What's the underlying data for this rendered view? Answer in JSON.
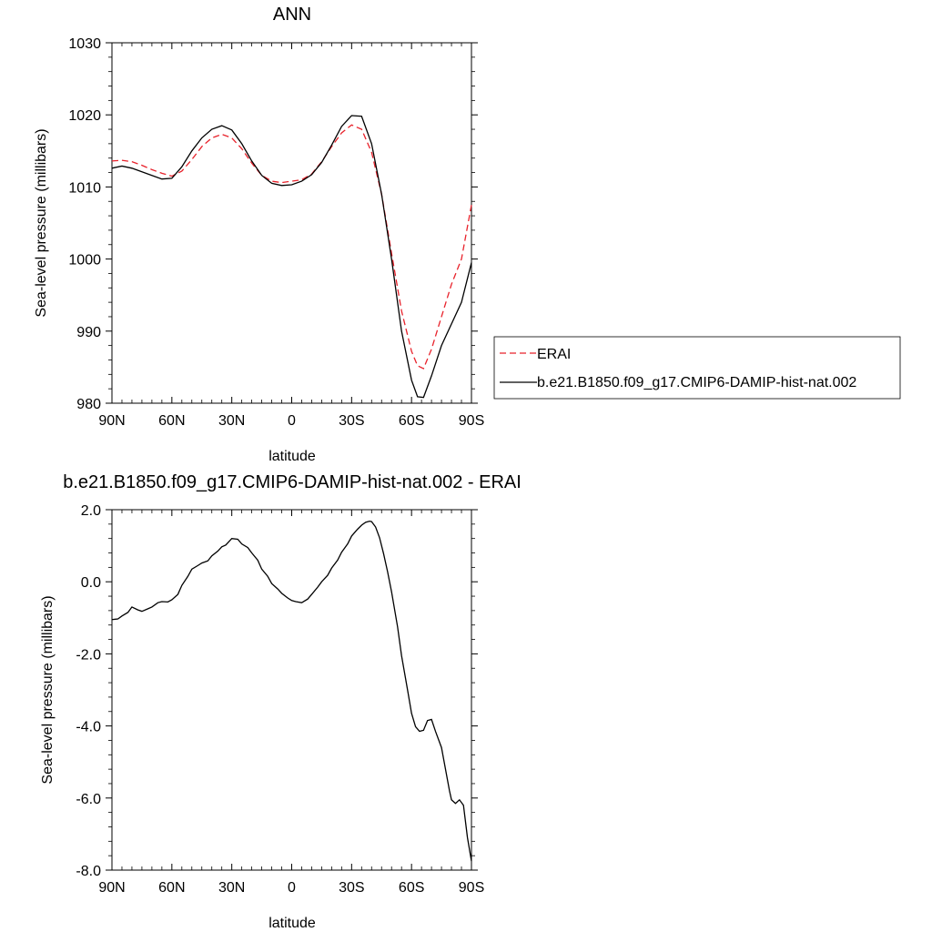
{
  "chart_data": [
    {
      "type": "line",
      "title": "ANN",
      "xlabel": "latitude",
      "ylabel": "Sea-level pressure (millibars)",
      "x_ticks": [
        "90N",
        "60N",
        "30N",
        "0",
        "30S",
        "60S",
        "90S"
      ],
      "x_tick_values": [
        90,
        60,
        30,
        0,
        -30,
        -60,
        -90
      ],
      "y_ticks": [
        "980",
        "990",
        "1000",
        "1010",
        "1020",
        "1030"
      ],
      "y_tick_values": [
        980,
        990,
        1000,
        1010,
        1020,
        1030
      ],
      "xlim": [
        90,
        -90
      ],
      "ylim": [
        980,
        1030
      ],
      "legend_position": "right",
      "series": [
        {
          "name": "ERAI",
          "color": "#e8222b",
          "dash": "dashed",
          "x": [
            90,
            85,
            80,
            75,
            70,
            65,
            60,
            55,
            50,
            45,
            40,
            35,
            30,
            25,
            20,
            15,
            10,
            5,
            0,
            -5,
            -10,
            -15,
            -20,
            -25,
            -30,
            -35,
            -40,
            -45,
            -50,
            -55,
            -60,
            -63,
            -66,
            -70,
            -75,
            -80,
            -85,
            -90
          ],
          "y": [
            1013.6,
            1013.7,
            1013.5,
            1013.0,
            1012.4,
            1011.9,
            1011.5,
            1012.2,
            1013.8,
            1015.6,
            1016.8,
            1017.3,
            1016.8,
            1015.3,
            1013.3,
            1011.6,
            1010.8,
            1010.6,
            1010.8,
            1011.0,
            1011.8,
            1013.5,
            1015.6,
            1017.5,
            1018.6,
            1018.0,
            1014.8,
            1009.0,
            1000.8,
            992.8,
            987.2,
            985.2,
            984.8,
            987.5,
            992.0,
            996.5,
            1000.0,
            1007.5
          ]
        },
        {
          "name": "b.e21.B1850.f09_g17.CMIP6-DAMIP-hist-nat.002",
          "color": "#000000",
          "dash": "solid",
          "x": [
            90,
            85,
            80,
            75,
            70,
            65,
            60,
            55,
            50,
            45,
            40,
            35,
            30,
            25,
            20,
            15,
            10,
            5,
            0,
            -5,
            -10,
            -15,
            -20,
            -25,
            -30,
            -35,
            -40,
            -45,
            -50,
            -55,
            -60,
            -63,
            -66,
            -70,
            -75,
            -80,
            -85,
            -90
          ],
          "y": [
            1012.6,
            1012.9,
            1012.6,
            1012.1,
            1011.6,
            1011.1,
            1011.2,
            1012.8,
            1015.0,
            1016.8,
            1018.0,
            1018.5,
            1017.9,
            1016.0,
            1013.6,
            1011.6,
            1010.5,
            1010.2,
            1010.3,
            1010.8,
            1011.7,
            1013.4,
            1015.8,
            1018.4,
            1019.9,
            1019.8,
            1016.0,
            1009.0,
            1000.0,
            990.0,
            983.2,
            980.9,
            980.8,
            983.8,
            988.0,
            991.0,
            994.0,
            999.5
          ]
        }
      ]
    },
    {
      "type": "line",
      "title": "b.e21.B1850.f09_g17.CMIP6-DAMIP-hist-nat.002 - ERAI",
      "xlabel": "latitude",
      "ylabel": "Sea-level pressure (millibars)",
      "x_ticks": [
        "90N",
        "60N",
        "30N",
        "0",
        "30S",
        "60S",
        "90S"
      ],
      "x_tick_values": [
        90,
        60,
        30,
        0,
        -30,
        -60,
        -90
      ],
      "y_ticks": [
        "-8.0",
        "-6.0",
        "-4.0",
        "-2.0",
        "0.0",
        "2.0"
      ],
      "y_tick_values": [
        -8,
        -6,
        -4,
        -2,
        0,
        2
      ],
      "xlim": [
        90,
        -90
      ],
      "ylim": [
        -8,
        2
      ],
      "series": [
        {
          "color": "#000000",
          "dash": "solid",
          "x": [
            90,
            87,
            85,
            82,
            80,
            77,
            75,
            72,
            70,
            67,
            65,
            62,
            60,
            57,
            55,
            52,
            50,
            47,
            45,
            42,
            40,
            37,
            35,
            33,
            30,
            27,
            25,
            22,
            20,
            17,
            15,
            12,
            10,
            7,
            5,
            2,
            0,
            -2,
            -5,
            -8,
            -10,
            -13,
            -15,
            -18,
            -20,
            -23,
            -25,
            -28,
            -30,
            -33,
            -35,
            -37,
            -39,
            -40,
            -42,
            -44,
            -46,
            -48,
            -50,
            -53,
            -55,
            -58,
            -60,
            -62,
            -64,
            -66,
            -68,
            -70,
            -72,
            -75,
            -77,
            -79,
            -80,
            -82,
            -84,
            -86,
            -88,
            -90
          ],
          "y": [
            -1.05,
            -1.03,
            -0.95,
            -0.85,
            -0.7,
            -0.78,
            -0.82,
            -0.75,
            -0.7,
            -0.58,
            -0.55,
            -0.56,
            -0.5,
            -0.35,
            -0.1,
            0.15,
            0.35,
            0.45,
            0.52,
            0.58,
            0.72,
            0.85,
            0.97,
            1.02,
            1.2,
            1.18,
            1.05,
            0.95,
            0.8,
            0.6,
            0.35,
            0.15,
            -0.05,
            -0.2,
            -0.32,
            -0.45,
            -0.52,
            -0.55,
            -0.58,
            -0.48,
            -0.35,
            -0.15,
            0.0,
            0.18,
            0.38,
            0.6,
            0.82,
            1.05,
            1.27,
            1.46,
            1.57,
            1.65,
            1.68,
            1.67,
            1.52,
            1.22,
            0.78,
            0.28,
            -0.28,
            -1.25,
            -2.05,
            -3.0,
            -3.65,
            -4.02,
            -4.15,
            -4.12,
            -3.85,
            -3.82,
            -4.15,
            -4.6,
            -5.2,
            -5.8,
            -6.05,
            -6.15,
            -6.05,
            -6.2,
            -7.1,
            -7.75
          ]
        }
      ]
    }
  ]
}
